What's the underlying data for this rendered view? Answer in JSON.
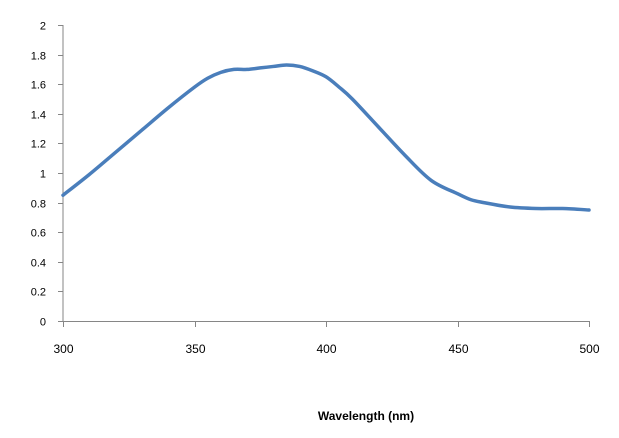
{
  "chart_data": {
    "type": "line",
    "title": "",
    "xlabel": "Wavelength (nm)",
    "ylabel": "",
    "xlim": [
      300,
      500
    ],
    "ylim": [
      0,
      2
    ],
    "x_ticks": [
      300,
      350,
      400,
      450,
      500
    ],
    "y_ticks": [
      0,
      0.2,
      0.4,
      0.6,
      0.8,
      1,
      1.2,
      1.4,
      1.6,
      1.8,
      2
    ],
    "x_tick_labels": [
      "300",
      "350",
      "400",
      "450",
      "500"
    ],
    "y_tick_labels": [
      "0",
      "0.2",
      "0.4",
      "0.6",
      "0.8",
      "1",
      "1.2",
      "1.4",
      "1.6",
      "1.8",
      "2"
    ],
    "grid": false,
    "legend": "none",
    "series": [
      {
        "color": "#4a7ebb",
        "x": [
          300,
          310,
          320,
          330,
          340,
          350,
          355,
          360,
          365,
          370,
          375,
          380,
          385,
          390,
          395,
          400,
          405,
          410,
          420,
          430,
          440,
          450,
          455,
          460,
          470,
          480,
          490,
          500
        ],
        "y": [
          0.85,
          0.99,
          1.14,
          1.29,
          1.44,
          1.58,
          1.64,
          1.68,
          1.7,
          1.7,
          1.71,
          1.72,
          1.73,
          1.72,
          1.69,
          1.65,
          1.58,
          1.5,
          1.31,
          1.12,
          0.95,
          0.86,
          0.82,
          0.8,
          0.77,
          0.76,
          0.76,
          0.75
        ]
      }
    ]
  }
}
